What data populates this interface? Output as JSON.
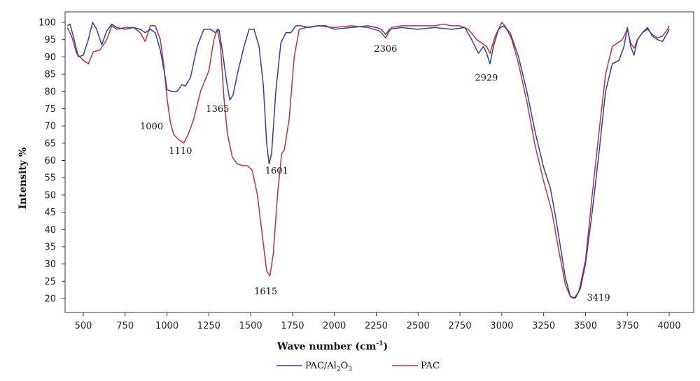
{
  "chart_data": {
    "type": "line",
    "xlabel_main": "Wave number (cm",
    "xlabel_sup": "-1",
    "xlabel_close": ")",
    "ylabel": "Intensity %",
    "xlim": [
      400,
      4000
    ],
    "ylim": [
      20,
      100
    ],
    "x_ticks": [
      500,
      750,
      1000,
      1250,
      1500,
      1750,
      2000,
      2250,
      2500,
      2750,
      3000,
      3250,
      3500,
      3750,
      4000
    ],
    "y_ticks": [
      20,
      25,
      30,
      35,
      40,
      45,
      50,
      55,
      60,
      65,
      70,
      75,
      80,
      85,
      90,
      95,
      100
    ],
    "grid": false,
    "legend_position": "bottom-center",
    "series": [
      {
        "name": "PAC/Al2O3",
        "legend": {
          "main": "PAC/Al",
          "sub1": "2",
          "mid": "O",
          "sub2": "3"
        },
        "color": "#2b3fb5",
        "points": [
          [
            405,
            99
          ],
          [
            420,
            99.5
          ],
          [
            440,
            96
          ],
          [
            470,
            90
          ],
          [
            500,
            90.5
          ],
          [
            530,
            95
          ],
          [
            555,
            100
          ],
          [
            580,
            98
          ],
          [
            610,
            93.5
          ],
          [
            640,
            97.5
          ],
          [
            670,
            99.5
          ],
          [
            700,
            98.5
          ],
          [
            750,
            98
          ],
          [
            800,
            98.5
          ],
          [
            840,
            98
          ],
          [
            870,
            97
          ],
          [
            900,
            98
          ],
          [
            930,
            97
          ],
          [
            960,
            92
          ],
          [
            990,
            84
          ],
          [
            1000,
            80.5
          ],
          [
            1030,
            80
          ],
          [
            1060,
            80
          ],
          [
            1090,
            82
          ],
          [
            1110,
            81.5
          ],
          [
            1140,
            84
          ],
          [
            1180,
            93
          ],
          [
            1220,
            98
          ],
          [
            1260,
            98
          ],
          [
            1290,
            97
          ],
          [
            1310,
            98
          ],
          [
            1330,
            92
          ],
          [
            1355,
            83
          ],
          [
            1375,
            77.5
          ],
          [
            1395,
            79
          ],
          [
            1420,
            85
          ],
          [
            1460,
            93
          ],
          [
            1490,
            98
          ],
          [
            1520,
            98
          ],
          [
            1550,
            93
          ],
          [
            1575,
            82
          ],
          [
            1595,
            65
          ],
          [
            1610,
            59
          ],
          [
            1625,
            62
          ],
          [
            1650,
            80
          ],
          [
            1680,
            94
          ],
          [
            1710,
            97
          ],
          [
            1740,
            97
          ],
          [
            1770,
            99
          ],
          [
            1800,
            99
          ],
          [
            1850,
            98.5
          ],
          [
            1900,
            99
          ],
          [
            1950,
            99
          ],
          [
            2000,
            98
          ],
          [
            2100,
            98.5
          ],
          [
            2200,
            99
          ],
          [
            2250,
            98.5
          ],
          [
            2280,
            98
          ],
          [
            2306,
            96.5
          ],
          [
            2330,
            98
          ],
          [
            2400,
            98.5
          ],
          [
            2500,
            98
          ],
          [
            2600,
            98.5
          ],
          [
            2700,
            98
          ],
          [
            2780,
            98.5
          ],
          [
            2820,
            95
          ],
          [
            2860,
            91
          ],
          [
            2890,
            93
          ],
          [
            2910,
            91
          ],
          [
            2929,
            88
          ],
          [
            2950,
            93
          ],
          [
            2980,
            98
          ],
          [
            3010,
            99
          ],
          [
            3050,
            97
          ],
          [
            3100,
            90
          ],
          [
            3150,
            80
          ],
          [
            3200,
            68
          ],
          [
            3250,
            58
          ],
          [
            3290,
            52
          ],
          [
            3320,
            44
          ],
          [
            3350,
            35
          ],
          [
            3380,
            26
          ],
          [
            3410,
            20.5
          ],
          [
            3440,
            20.2
          ],
          [
            3470,
            23
          ],
          [
            3500,
            30
          ],
          [
            3540,
            45
          ],
          [
            3580,
            62
          ],
          [
            3620,
            80
          ],
          [
            3660,
            88
          ],
          [
            3700,
            89
          ],
          [
            3730,
            93
          ],
          [
            3750,
            98.5
          ],
          [
            3770,
            93
          ],
          [
            3790,
            90.5
          ],
          [
            3810,
            95
          ],
          [
            3840,
            97
          ],
          [
            3870,
            98.5
          ],
          [
            3900,
            96
          ],
          [
            3930,
            95
          ],
          [
            3960,
            94.5
          ],
          [
            3990,
            97
          ],
          [
            4000,
            98
          ]
        ]
      },
      {
        "name": "PAC",
        "legend": {
          "main": "PAC"
        },
        "color": "#c0303d",
        "points": [
          [
            405,
            98.5
          ],
          [
            430,
            96
          ],
          [
            460,
            91
          ],
          [
            500,
            89
          ],
          [
            530,
            88
          ],
          [
            560,
            91.5
          ],
          [
            600,
            92
          ],
          [
            640,
            95
          ],
          [
            670,
            99
          ],
          [
            700,
            98
          ],
          [
            750,
            98.5
          ],
          [
            800,
            98.5
          ],
          [
            840,
            97
          ],
          [
            870,
            94.5
          ],
          [
            900,
            99
          ],
          [
            930,
            99
          ],
          [
            960,
            95
          ],
          [
            980,
            88
          ],
          [
            1000,
            78
          ],
          [
            1020,
            71
          ],
          [
            1040,
            67.5
          ],
          [
            1070,
            66
          ],
          [
            1100,
            65
          ],
          [
            1130,
            68
          ],
          [
            1160,
            72
          ],
          [
            1200,
            80
          ],
          [
            1250,
            86
          ],
          [
            1280,
            95
          ],
          [
            1300,
            98
          ],
          [
            1320,
            93
          ],
          [
            1340,
            78
          ],
          [
            1360,
            68
          ],
          [
            1390,
            61
          ],
          [
            1420,
            59
          ],
          [
            1450,
            58.5
          ],
          [
            1480,
            58.5
          ],
          [
            1510,
            57
          ],
          [
            1540,
            50
          ],
          [
            1570,
            38
          ],
          [
            1595,
            28
          ],
          [
            1615,
            26.5
          ],
          [
            1635,
            33
          ],
          [
            1660,
            50
          ],
          [
            1685,
            62
          ],
          [
            1700,
            63
          ],
          [
            1730,
            72
          ],
          [
            1760,
            90
          ],
          [
            1790,
            98
          ],
          [
            1830,
            98.5
          ],
          [
            1900,
            99
          ],
          [
            2000,
            98.5
          ],
          [
            2100,
            99
          ],
          [
            2200,
            98.5
          ],
          [
            2270,
            97.5
          ],
          [
            2306,
            95.5
          ],
          [
            2340,
            98.5
          ],
          [
            2400,
            99
          ],
          [
            2500,
            99
          ],
          [
            2600,
            99
          ],
          [
            2650,
            99.5
          ],
          [
            2700,
            99
          ],
          [
            2750,
            99
          ],
          [
            2800,
            98
          ],
          [
            2850,
            95
          ],
          [
            2880,
            94
          ],
          [
            2910,
            93
          ],
          [
            2929,
            91
          ],
          [
            2960,
            96
          ],
          [
            3000,
            100
          ],
          [
            3020,
            99
          ],
          [
            3060,
            95
          ],
          [
            3100,
            88
          ],
          [
            3150,
            77
          ],
          [
            3200,
            64
          ],
          [
            3250,
            54
          ],
          [
            3300,
            45
          ],
          [
            3340,
            34
          ],
          [
            3380,
            24
          ],
          [
            3410,
            20.5
          ],
          [
            3430,
            20
          ],
          [
            3460,
            22
          ],
          [
            3500,
            31
          ],
          [
            3540,
            50
          ],
          [
            3580,
            68
          ],
          [
            3620,
            85
          ],
          [
            3660,
            93
          ],
          [
            3690,
            94
          ],
          [
            3720,
            95
          ],
          [
            3750,
            98
          ],
          [
            3770,
            94
          ],
          [
            3790,
            92.5
          ],
          [
            3810,
            95
          ],
          [
            3840,
            97
          ],
          [
            3870,
            98
          ],
          [
            3900,
            96.5
          ],
          [
            3930,
            95.5
          ],
          [
            3960,
            96
          ],
          [
            3990,
            98
          ],
          [
            4000,
            99
          ]
        ]
      }
    ],
    "annotations": [
      {
        "text": "1000",
        "x": 1000,
        "y": 80
      },
      {
        "text": "1110",
        "x": 1110,
        "y": 65
      },
      {
        "text": "1365",
        "x": 1365,
        "y": 77.5
      },
      {
        "text": "1601",
        "x": 1601,
        "y": 59
      },
      {
        "text": "1615",
        "x": 1615,
        "y": 26.5
      },
      {
        "text": "2306",
        "x": 2306,
        "y": 95.5
      },
      {
        "text": "2929",
        "x": 2929,
        "y": 88
      },
      {
        "text": "3419",
        "x": 3419,
        "y": 20
      }
    ]
  }
}
